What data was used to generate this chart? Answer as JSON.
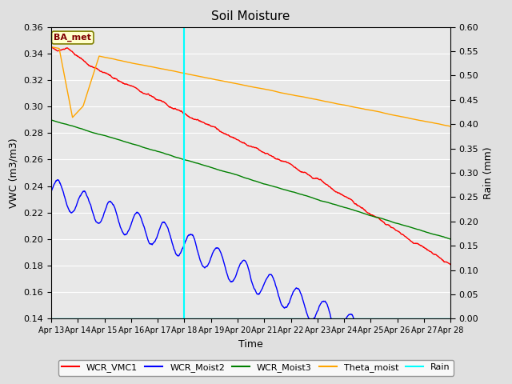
{
  "title": "Soil Moisture",
  "xlabel": "Time",
  "ylabel_left": "VWC (m3/m3)",
  "ylabel_right": "Rain (mm)",
  "ylim_left": [
    0.14,
    0.36
  ],
  "ylim_right": [
    0.0,
    0.6
  ],
  "yticks_left": [
    0.14,
    0.16,
    0.18,
    0.2,
    0.22,
    0.24,
    0.26,
    0.28,
    0.3,
    0.32,
    0.34,
    0.36
  ],
  "yticks_right": [
    0.0,
    0.05,
    0.1,
    0.15,
    0.2,
    0.25,
    0.3,
    0.35,
    0.4,
    0.45,
    0.5,
    0.55,
    0.6
  ],
  "vline_x": 5.0,
  "vline_color": "cyan",
  "background_color": "#e0e0e0",
  "plot_bg_color": "#e8e8e8",
  "label_box_text": "BA_met",
  "label_box_facecolor": "#ffffcc",
  "label_box_edgecolor": "#808000",
  "label_box_textcolor": "#800000",
  "colors": {
    "WCR_VMC1": "red",
    "WCR_Moist2": "blue",
    "WCR_Moist3": "green",
    "Theta_moist": "orange",
    "Rain": "cyan"
  },
  "legend_labels": [
    "WCR_VMC1",
    "WCR_Moist2",
    "WCR_Moist3",
    "Theta_moist",
    "Rain"
  ],
  "x_tick_labels": [
    "Apr 13",
    "Apr 14",
    "Apr 15",
    "Apr 16",
    "Apr 17",
    "Apr 18",
    "Apr 19",
    "Apr 20",
    "Apr 21",
    "Apr 22",
    "Apr 23",
    "Apr 24",
    "Apr 25",
    "Apr 26",
    "Apr 27",
    "Apr 28"
  ],
  "num_points": 1500,
  "seed": 42
}
